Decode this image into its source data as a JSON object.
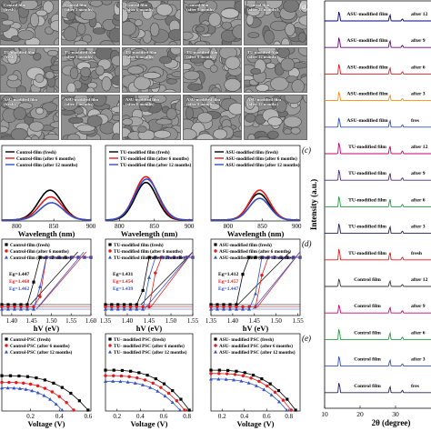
{
  "panel_letters": {
    "a": "(a)",
    "c": "(c)",
    "d": "(d)",
    "e": "(e)"
  },
  "sem": {
    "rows": [
      {
        "tiles": [
          "Control film\n(fresh)",
          "Control film\n(after 3 months)",
          "Control film\n(after 6 months)",
          "Control film\n(after 9 months)",
          "Control film\n(after 12 months)"
        ]
      },
      {
        "tiles": [
          "TU-modified film\n(fresh)",
          "TU-modified film\n(after 3 months)",
          "TU-modified film\n(after 6 months)",
          "TU-modified film\n(after 9 months)",
          "TU-modified film\n(after 12 months)"
        ]
      },
      {
        "tiles": [
          "ASU-modified film\n(fresh)",
          "ASU-modified film\n(after 3 months)",
          "ASU-modified film\n(after 6 months)",
          "ASU-modified film\n(after 9 months)",
          "ASU-modified film\n(after 12 months)"
        ]
      }
    ]
  },
  "colors": {
    "fresh": "#000000",
    "six": "#e41a1c",
    "twelve": "#3050c8",
    "panel_c_tu_12": "#3050c8"
  },
  "chart_data": [
    {
      "panel": "c-1",
      "type": "line",
      "xlabel": "Wavelength (nm)",
      "xticks": [
        800,
        850,
        900
      ],
      "xlim": [
        780,
        900
      ],
      "ylim": [
        0,
        1
      ],
      "series": [
        {
          "name": "Control-film (fresh)",
          "color": "#000000",
          "peak": 845,
          "height": 0.62,
          "width": 22
        },
        {
          "name": "Control-film (after 6 months)",
          "color": "#e41a1c",
          "peak": 846,
          "height": 0.48,
          "width": 22
        },
        {
          "name": "Control-film (after 12 months)",
          "color": "#3050c8",
          "peak": 847,
          "height": 0.36,
          "width": 22
        }
      ]
    },
    {
      "panel": "c-2",
      "type": "line",
      "xlabel": "Wavelength (nm)",
      "xticks": [
        800,
        850,
        900
      ],
      "xlim": [
        780,
        905
      ],
      "ylim": [
        0,
        1
      ],
      "series": [
        {
          "name": "TU-modified film (fresh)",
          "color": "#000000",
          "peak": 838,
          "height": 0.78,
          "width": 22
        },
        {
          "name": "TU-modified film (after 6 months)",
          "color": "#e41a1c",
          "peak": 838,
          "height": 0.9,
          "width": 23
        },
        {
          "name": "TU-modified film (after 12 months)",
          "color": "#3050c8",
          "peak": 839,
          "height": 0.85,
          "width": 24
        }
      ]
    },
    {
      "panel": "c-3",
      "type": "line",
      "xlabel": "Wavelength (nm)",
      "xticks": [
        800,
        850,
        900
      ],
      "xlim": [
        775,
        905
      ],
      "ylim": [
        0,
        1
      ],
      "series": [
        {
          "name": "ASU-modified film (fresh)",
          "color": "#000000",
          "peak": 845,
          "height": 0.55,
          "width": 21
        },
        {
          "name": "ASU-modified film (after 6 months)",
          "color": "#e41a1c",
          "peak": 846,
          "height": 0.62,
          "width": 21
        },
        {
          "name": "ASU-modified film (after 12 months)",
          "color": "#3050c8",
          "peak": 846,
          "height": 0.45,
          "width": 21
        }
      ]
    },
    {
      "panel": "d-1",
      "type": "scatter",
      "xlabel": "hV (eV)",
      "xticks": [
        1.4,
        1.45,
        1.5,
        1.55,
        1.6
      ],
      "xtick_labels": [
        "1.40",
        "1.45",
        "1.50",
        "1.55",
        "1.60"
      ],
      "xlim": [
        1.375,
        1.6
      ],
      "ylim": [
        0,
        1
      ],
      "annotations": [
        {
          "text": "Eg=1.447",
          "color": "#000000"
        },
        {
          "text": "Eg=1.468",
          "color": "#e41a1c"
        },
        {
          "text": "Eg=1.462",
          "color": "#3050c8"
        }
      ],
      "series": [
        {
          "name": "Control-film (fresh)",
          "color": "#000000",
          "marker": "square",
          "x0": 1.447,
          "slope": 4.5
        },
        {
          "name": "Control-film (after 6 months)",
          "color": "#e41a1c",
          "marker": "circle",
          "x0": 1.468,
          "slope": 5.0
        },
        {
          "name": "Control-film (after 12 months)",
          "color": "#3050c8",
          "marker": "triangle",
          "x0": 1.462,
          "slope": 4.0
        }
      ]
    },
    {
      "panel": "d-2",
      "type": "scatter",
      "xlabel": "hV (eV)",
      "xticks": [
        1.35,
        1.4,
        1.45,
        1.5,
        1.55
      ],
      "xtick_labels": [
        "1.35",
        "1.40",
        "1.45",
        "1.50",
        "1.55"
      ],
      "xlim": [
        1.35,
        1.55
      ],
      "ylim": [
        0,
        1
      ],
      "annotations": [
        {
          "text": "Eg=1.431",
          "color": "#000000"
        },
        {
          "text": "Eg=1.454",
          "color": "#e41a1c"
        },
        {
          "text": "Eg=1.439",
          "color": "#3050c8"
        }
      ],
      "series": [
        {
          "name": "TU-modified film (fresh)",
          "color": "#000000",
          "marker": "square",
          "x0": 1.431,
          "slope": 5.0
        },
        {
          "name": "TU-modified film (after 6 months)",
          "color": "#e41a1c",
          "marker": "circle",
          "x0": 1.454,
          "slope": 5.5
        },
        {
          "name": "TU-modified film (after 12 months)",
          "color": "#3050c8",
          "marker": "triangle",
          "x0": 1.439,
          "slope": 4.8
        }
      ]
    },
    {
      "panel": "d-3",
      "type": "scatter",
      "xlabel": "hV (eV)",
      "xticks": [
        1.35,
        1.4,
        1.45,
        1.5,
        1.55
      ],
      "xtick_labels": [
        "1.35",
        "1.40",
        "1.45",
        "1.50",
        "1.55"
      ],
      "xlim": [
        1.35,
        1.555
      ],
      "ylim": [
        0,
        1
      ],
      "annotations": [
        {
          "text": "Eg=1.412",
          "color": "#000000"
        },
        {
          "text": "Eg=1.457",
          "color": "#e41a1c"
        },
        {
          "text": "Eg=1.447",
          "color": "#3050c8"
        }
      ],
      "series": [
        {
          "name": "ASU-modified film (fresh)",
          "color": "#000000",
          "marker": "square",
          "x0": 1.412,
          "slope": 4.5
        },
        {
          "name": "ASU-modified film (after 6 months)",
          "color": "#e41a1c",
          "marker": "circle",
          "x0": 1.457,
          "slope": 5.2
        },
        {
          "name": "ASU-modified film (after 12 months)",
          "color": "#3050c8",
          "marker": "triangle",
          "x0": 1.447,
          "slope": 4.7
        }
      ]
    },
    {
      "panel": "e-1",
      "type": "scatter",
      "xlabel": "Voltage (V)",
      "xticks": [
        0.2,
        0.4,
        0.6
      ],
      "xtick_labels": [
        "0.2",
        "0.4",
        "0.6"
      ],
      "xlim": [
        0,
        0.62
      ],
      "ylim": [
        0,
        1
      ],
      "series": [
        {
          "name": "Control-PSC (fresh)",
          "color": "#000000",
          "marker": "square",
          "y0": 0.62,
          "x_end": 0.6
        },
        {
          "name": "Control-PSC (after 6 months)",
          "color": "#e41a1c",
          "marker": "circle",
          "y0": 0.5,
          "x_end": 0.5
        },
        {
          "name": "Control-PSC (after 12 months)",
          "color": "#3050c8",
          "marker": "triangle",
          "y0": 0.4,
          "x_end": 0.42
        }
      ]
    },
    {
      "panel": "e-2",
      "type": "scatter",
      "xlabel": "Voltage (V)",
      "xticks": [
        0.2,
        0.4,
        0.6,
        0.8
      ],
      "xtick_labels": [
        "0.2",
        "0.4",
        "0.6",
        "0.8"
      ],
      "xlim": [
        0.1,
        0.85
      ],
      "ylim": [
        0,
        1
      ],
      "series": [
        {
          "name": "TU- modified PSC (fresh)",
          "color": "#000000",
          "marker": "square",
          "y0": 0.72,
          "x_end": 0.82
        },
        {
          "name": "TU- modified PSC (after 6 months)",
          "color": "#e41a1c",
          "marker": "circle",
          "y0": 0.62,
          "x_end": 0.78
        },
        {
          "name": "TU- modified PSC (after 12 months)",
          "color": "#3050c8",
          "marker": "triangle",
          "y0": 0.52,
          "x_end": 0.74
        }
      ]
    },
    {
      "panel": "e-3",
      "type": "scatter",
      "xlabel": "Voltage (V)",
      "xticks": [
        0.2,
        0.4,
        0.6,
        0.8
      ],
      "xtick_labels": [
        "0.2",
        "0.4",
        "0.6",
        "0.8"
      ],
      "xlim": [
        0.1,
        0.9
      ],
      "ylim": [
        0,
        1
      ],
      "series": [
        {
          "name": "ASU- modified PSC (fresh)",
          "color": "#000000",
          "marker": "square",
          "y0": 0.72,
          "x_end": 0.86
        },
        {
          "name": "ASU- modified PSC (after 6 months)",
          "color": "#e41a1c",
          "marker": "circle",
          "y0": 0.66,
          "x_end": 0.82
        },
        {
          "name": "ASU- modified PSC (after 12 months)",
          "color": "#3050c8",
          "marker": "triangle",
          "y0": 0.56,
          "x_end": 0.78
        }
      ]
    },
    {
      "panel": "xrd",
      "type": "line",
      "xlabel": "2θ (degree)",
      "ylabel": "Intensity (a.u.)",
      "xticks": [
        10,
        20,
        30,
        40
      ],
      "xlim": [
        10,
        40
      ],
      "peaks_deg": [
        14.1,
        28.4,
        31.9
      ],
      "series": [
        {
          "name": "ASU-modified film after 12",
          "color": "#000080",
          "h": [
            0.85,
            0.55,
            0.18
          ]
        },
        {
          "name": "ASU-modified film after 9",
          "color": "#6a0080",
          "h": [
            0.9,
            0.6,
            0.2
          ]
        },
        {
          "name": "ASU-modified film after 6",
          "color": "#e41a1c",
          "h": [
            0.9,
            0.55,
            0.2
          ]
        },
        {
          "name": "ASU-modified film after 3",
          "color": "#ff8c00",
          "h": [
            0.8,
            0.5,
            0.18
          ]
        },
        {
          "name": "ASU-modified film fresh",
          "color": "#3050c8",
          "h": [
            0.85,
            0.6,
            0.2
          ]
        },
        {
          "name": "TU-modified film after 12",
          "color": "#c8007a",
          "h": [
            1.0,
            0.7,
            0.25
          ]
        },
        {
          "name": "TU-modified film after 9",
          "color": "#4b2a80",
          "h": [
            0.95,
            0.65,
            0.22
          ]
        },
        {
          "name": "TU-modified film after 6",
          "color": "#20a040",
          "h": [
            0.95,
            0.7,
            0.22
          ]
        },
        {
          "name": "TU-modified film after 3",
          "color": "#202060",
          "h": [
            0.9,
            0.6,
            0.2
          ]
        },
        {
          "name": "TU-modified film fresh",
          "color": "#e41a1c",
          "h": [
            1.0,
            0.7,
            0.25
          ]
        },
        {
          "name": "Control film after 12",
          "color": "#3a3a3a",
          "h": [
            0.7,
            0.5,
            0.18
          ]
        },
        {
          "name": "Control film after 9",
          "color": "#c8007a",
          "h": [
            0.75,
            0.5,
            0.2
          ]
        },
        {
          "name": "Control film after 6",
          "color": "#20a040",
          "h": [
            0.95,
            0.6,
            0.22
          ]
        },
        {
          "name": "Control film after 3",
          "color": "#3050c8",
          "h": [
            0.9,
            0.55,
            0.2
          ]
        },
        {
          "name": "Control film fresh",
          "color": "#202060",
          "h": [
            0.9,
            0.55,
            0.2
          ]
        }
      ],
      "labels": [
        "ASU-modified film",
        "after 12",
        "ASU-modified film",
        "after 9",
        "ASU-modified film",
        "after 6",
        "ASU-modified film",
        "after 3",
        "ASU-modified film",
        "fres",
        "TU-modified film",
        "after 12",
        "TU-modified film",
        "after 9",
        "TU-modified film",
        "after 6",
        "TU-modified film",
        "after 3",
        "TU-modified film",
        "fresh",
        "Control film",
        "after 12",
        "Control film",
        "after 9",
        "Control film",
        "after 6",
        "Control film",
        "after 3",
        "Control film",
        "fres"
      ]
    }
  ]
}
